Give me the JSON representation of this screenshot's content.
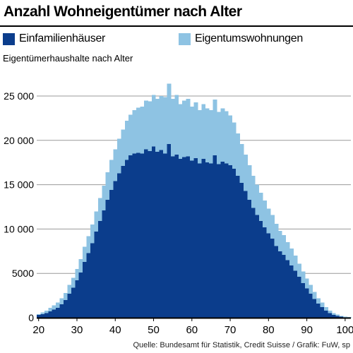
{
  "title": "Anzahl Wohneigentümer nach Alter",
  "source": "Quelle: Bundesamt für Statistik, Credit Suisse / Grafik: FuW, sp",
  "colors": {
    "series_1": "#0b3d8c",
    "series_2": "#8ec3e3",
    "grid": "#9a9a9a",
    "axis": "#000000"
  },
  "legend": [
    {
      "label": "Einfamilienhäuser",
      "color": "#0b3d8c"
    },
    {
      "label": "Eigentumswohnungen",
      "color": "#8ec3e3"
    }
  ],
  "chart_data": {
    "type": "bar",
    "stacked": true,
    "title": "Anzahl Wohneigentümer nach Alter",
    "xlabel": "",
    "ylabel": "Eigentümerhaushalte nach Alter",
    "xlim": [
      19.5,
      101.5
    ],
    "ylim": [
      0,
      25000
    ],
    "x_ticks": [
      20,
      30,
      40,
      50,
      60,
      70,
      80,
      90,
      100
    ],
    "y_ticks": [
      {
        "value": 0,
        "label": "0"
      },
      {
        "value": 5000,
        "label": "5000"
      },
      {
        "value": 10000,
        "label": "10 000"
      },
      {
        "value": 15000,
        "label": "15 000"
      },
      {
        "value": 20000,
        "label": "20 000"
      },
      {
        "value": 25000,
        "label": "25 000"
      }
    ],
    "grid": "horizontal",
    "legend_position": "top",
    "categories": [
      20,
      21,
      22,
      23,
      24,
      25,
      26,
      27,
      28,
      29,
      30,
      31,
      32,
      33,
      34,
      35,
      36,
      37,
      38,
      39,
      40,
      41,
      42,
      43,
      44,
      45,
      46,
      47,
      48,
      49,
      50,
      51,
      52,
      53,
      54,
      55,
      56,
      57,
      58,
      59,
      60,
      61,
      62,
      63,
      64,
      65,
      66,
      67,
      68,
      69,
      70,
      71,
      72,
      73,
      74,
      75,
      76,
      77,
      78,
      79,
      80,
      81,
      82,
      83,
      84,
      85,
      86,
      87,
      88,
      89,
      90,
      91,
      92,
      93,
      94,
      95,
      96,
      97,
      98,
      99,
      100,
      101
    ],
    "series": [
      {
        "name": "Einfamilienhäuser",
        "values": [
          300,
          400,
          500,
          700,
          900,
          1100,
          1500,
          2000,
          2700,
          3400,
          4200,
          5100,
          6300,
          7300,
          8400,
          9700,
          10900,
          12100,
          13300,
          14400,
          15400,
          16300,
          17100,
          17800,
          18300,
          18500,
          18600,
          18500,
          19000,
          18800,
          19300,
          18700,
          18900,
          18500,
          19600,
          18200,
          18400,
          17900,
          18100,
          18200,
          17700,
          18000,
          17400,
          17900,
          17500,
          17400,
          18300,
          17300,
          17600,
          17400,
          17200,
          16800,
          16000,
          15200,
          14300,
          13300,
          12400,
          11600,
          10900,
          10200,
          9500,
          8900,
          8100,
          7500,
          7100,
          6500,
          5900,
          5300,
          4600,
          3900,
          3300,
          2700,
          2100,
          1600,
          1200,
          800,
          500,
          300,
          200,
          100,
          50,
          30
        ]
      },
      {
        "name": "Eigentumswohnungen",
        "values": [
          100,
          200,
          300,
          400,
          500,
          600,
          700,
          800,
          1000,
          1100,
          1300,
          1500,
          1700,
          1900,
          2100,
          2300,
          2600,
          2800,
          3100,
          3400,
          3600,
          3900,
          4100,
          4400,
          4600,
          4900,
          5100,
          5300,
          5500,
          5600,
          5800,
          6000,
          6100,
          6400,
          6800,
          6500,
          6700,
          6200,
          6400,
          6500,
          6100,
          6300,
          6000,
          6200,
          6100,
          6000,
          6300,
          5900,
          6000,
          5900,
          5600,
          5200,
          4800,
          4400,
          4100,
          3900,
          3600,
          3400,
          3200,
          3000,
          2800,
          2700,
          2500,
          2300,
          2200,
          2000,
          1900,
          1700,
          1500,
          1300,
          1100,
          1000,
          800,
          600,
          500,
          400,
          300,
          200,
          150,
          100,
          50,
          30
        ]
      }
    ]
  }
}
